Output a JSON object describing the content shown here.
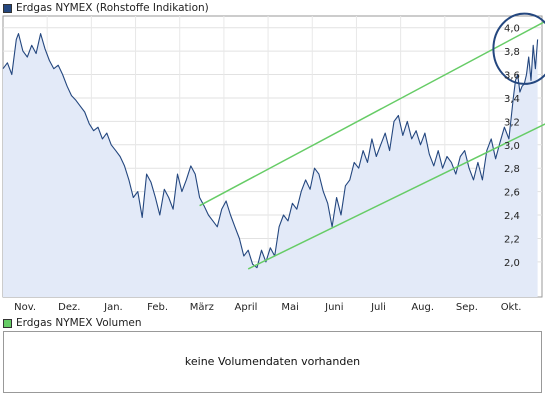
{
  "legend_price": {
    "label": "Erdgas NYMEX (Rohstoffe Indikation)",
    "color": "#24477f"
  },
  "legend_volume": {
    "label": "Erdgas NYMEX Volumen",
    "color": "#66cc66"
  },
  "volume_message": "keine Volumendaten vorhanden",
  "chart_data": {
    "type": "line",
    "x_labels": [
      "Nov.",
      "Dez.",
      "Jan.",
      "Feb.",
      "März",
      "April",
      "Mai",
      "Juni",
      "Juli",
      "Aug.",
      "Sep.",
      "Okt."
    ],
    "y_ticks": [
      2.0,
      2.2,
      2.4,
      2.6,
      2.8,
      3.0,
      3.2,
      3.4,
      3.6,
      3.8,
      4.0
    ],
    "y_tick_labels": [
      "2,0",
      "2,2",
      "2,4",
      "2,6",
      "2,8",
      "3,0",
      "3,2",
      "3,4",
      "3,6",
      "3,8",
      "4,0"
    ],
    "ylim": [
      1.7,
      4.1
    ],
    "x_range": [
      0,
      12.2
    ],
    "grid": true,
    "series": [
      {
        "color": "#24477f",
        "fill": "#e3eaf8",
        "x": [
          0,
          0.1,
          0.2,
          0.3,
          0.35,
          0.45,
          0.55,
          0.65,
          0.75,
          0.85,
          0.95,
          1.05,
          1.15,
          1.25,
          1.35,
          1.45,
          1.55,
          1.65,
          1.75,
          1.85,
          1.95,
          2.05,
          2.15,
          2.25,
          2.35,
          2.45,
          2.55,
          2.65,
          2.75,
          2.85,
          2.95,
          3.05,
          3.15,
          3.25,
          3.35,
          3.45,
          3.55,
          3.65,
          3.75,
          3.85,
          3.95,
          4.05,
          4.15,
          4.25,
          4.35,
          4.45,
          4.55,
          4.65,
          4.75,
          4.85,
          4.95,
          5.05,
          5.15,
          5.25,
          5.35,
          5.45,
          5.55,
          5.65,
          5.75,
          5.85,
          5.95,
          6.05,
          6.15,
          6.25,
          6.35,
          6.45,
          6.55,
          6.65,
          6.75,
          6.85,
          6.95,
          7.05,
          7.15,
          7.25,
          7.35,
          7.45,
          7.55,
          7.65,
          7.75,
          7.85,
          7.95,
          8.05,
          8.15,
          8.25,
          8.35,
          8.45,
          8.55,
          8.65,
          8.75,
          8.85,
          8.95,
          9.05,
          9.15,
          9.25,
          9.35,
          9.45,
          9.55,
          9.65,
          9.75,
          9.85,
          9.95,
          10.05,
          10.15,
          10.25,
          10.35,
          10.45,
          10.55,
          10.65,
          10.75,
          10.85,
          10.95,
          11.05,
          11.15,
          11.25,
          11.35,
          11.45,
          11.55,
          11.6,
          11.65,
          11.7,
          11.75,
          11.8,
          11.85,
          11.9,
          11.95,
          12.0,
          12.05,
          12.1
        ],
        "values": [
          3.65,
          3.7,
          3.6,
          3.9,
          3.95,
          3.8,
          3.75,
          3.85,
          3.78,
          3.95,
          3.82,
          3.72,
          3.65,
          3.68,
          3.6,
          3.5,
          3.42,
          3.38,
          3.33,
          3.28,
          3.18,
          3.12,
          3.15,
          3.05,
          3.1,
          3.0,
          2.95,
          2.9,
          2.82,
          2.7,
          2.55,
          2.6,
          2.38,
          2.75,
          2.68,
          2.55,
          2.4,
          2.62,
          2.55,
          2.45,
          2.75,
          2.6,
          2.7,
          2.82,
          2.75,
          2.55,
          2.48,
          2.4,
          2.35,
          2.3,
          2.45,
          2.52,
          2.4,
          2.3,
          2.2,
          2.05,
          2.1,
          1.98,
          1.95,
          2.1,
          2.0,
          2.12,
          2.05,
          2.3,
          2.4,
          2.35,
          2.5,
          2.45,
          2.6,
          2.7,
          2.62,
          2.8,
          2.75,
          2.6,
          2.5,
          2.3,
          2.55,
          2.4,
          2.65,
          2.7,
          2.85,
          2.8,
          2.95,
          2.85,
          3.05,
          2.9,
          3.0,
          3.1,
          2.95,
          3.2,
          3.25,
          3.08,
          3.2,
          3.05,
          3.12,
          3.0,
          3.1,
          2.92,
          2.82,
          2.95,
          2.8,
          2.9,
          2.85,
          2.75,
          2.9,
          2.95,
          2.8,
          2.7,
          2.85,
          2.7,
          2.95,
          3.05,
          2.88,
          3.02,
          3.15,
          3.05,
          3.4,
          3.55,
          3.6,
          3.45,
          3.5,
          3.52,
          3.6,
          3.75,
          3.55,
          3.85,
          3.65,
          3.9
        ]
      }
    ],
    "trend_lines": [
      {
        "color": "#66cc66",
        "from": [
          4.45,
          2.48
        ],
        "to": [
          12.5,
          4.1
        ]
      },
      {
        "color": "#66cc66",
        "from": [
          5.55,
          1.94
        ],
        "to": [
          12.5,
          3.22
        ]
      }
    ],
    "annotation_circle": {
      "color": "#24477f",
      "center": [
        11.8,
        3.82
      ],
      "rx": 0.7,
      "ry": 0.3
    }
  }
}
